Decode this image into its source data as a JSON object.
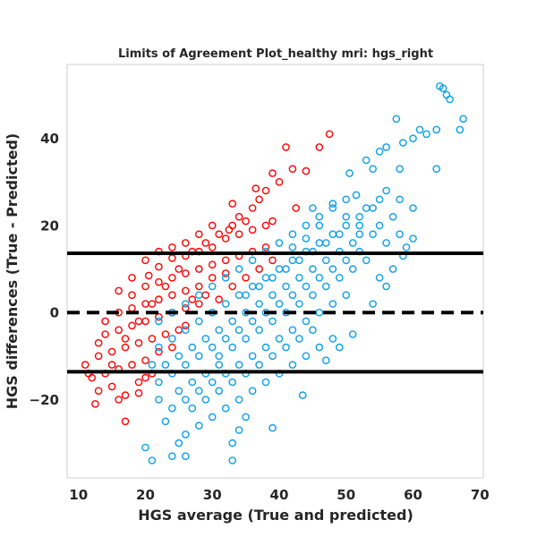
{
  "chart_data": {
    "type": "scatter",
    "title": "Limits of Agreement Plot_healthy mri: hgs_right",
    "xlabel": "HGS average (True and predicted)",
    "ylabel": "HGS differences (True - Predicted)",
    "xlim": [
      8.3,
      70.5
    ],
    "ylim": [
      -38.0,
      57.0
    ],
    "x_ticks": [
      10,
      20,
      30,
      40,
      50,
      60,
      70
    ],
    "y_ticks": [
      -20,
      0,
      20,
      40
    ],
    "x_tick_labels": [
      "10",
      "20",
      "30",
      "40",
      "50",
      "60",
      "70"
    ],
    "y_tick_labels": [
      "−20",
      "0",
      "20",
      "40"
    ],
    "grid": false,
    "legend": "none",
    "colors": {
      "over": "#ff0000",
      "under": "#0b9ee8",
      "lines": "#000000"
    },
    "reference_lines": {
      "mean": 0.0,
      "upper_loa": 13.6,
      "lower_loa": -13.6
    },
    "series": [
      {
        "color": "#ff0000",
        "marker": "open-circle",
        "points": [
          [
            20.5,
            8.5
          ],
          [
            22,
            10.5
          ],
          [
            24,
            12.5
          ],
          [
            26,
            13
          ],
          [
            28,
            14
          ],
          [
            30,
            15
          ],
          [
            32,
            17
          ],
          [
            34,
            18
          ],
          [
            36,
            19
          ],
          [
            38,
            20
          ],
          [
            18,
            4
          ],
          [
            20,
            6
          ],
          [
            22,
            7
          ],
          [
            24,
            8
          ],
          [
            26,
            9
          ],
          [
            28,
            10
          ],
          [
            30,
            11
          ],
          [
            32,
            12
          ],
          [
            34,
            13
          ],
          [
            36,
            14
          ],
          [
            38,
            15
          ],
          [
            16,
            0
          ],
          [
            18,
            1
          ],
          [
            20,
            2
          ],
          [
            22,
            3
          ],
          [
            24,
            4
          ],
          [
            26,
            5
          ],
          [
            28,
            6
          ],
          [
            30,
            8
          ],
          [
            32,
            9
          ],
          [
            14,
            -5
          ],
          [
            16,
            -4
          ],
          [
            18,
            -3
          ],
          [
            20,
            -2
          ],
          [
            22,
            -1
          ],
          [
            24,
            0
          ],
          [
            26,
            1
          ],
          [
            28,
            2
          ],
          [
            13,
            -10
          ],
          [
            15,
            -9
          ],
          [
            17,
            -8
          ],
          [
            19,
            -7
          ],
          [
            21,
            -6
          ],
          [
            23,
            -5
          ],
          [
            25,
            -4
          ],
          [
            12,
            -15
          ],
          [
            14,
            -14
          ],
          [
            16,
            -13
          ],
          [
            18,
            -12
          ],
          [
            20,
            -11
          ],
          [
            13,
            -18
          ],
          [
            15,
            -17
          ],
          [
            17,
            -19
          ],
          [
            19,
            -16
          ],
          [
            21,
            -14
          ],
          [
            12.5,
            -21
          ],
          [
            17,
            -25
          ],
          [
            16,
            -20
          ],
          [
            11,
            -12
          ],
          [
            11.5,
            -14
          ],
          [
            19,
            -18.5
          ],
          [
            24,
            -8
          ],
          [
            26,
            -3
          ],
          [
            22,
            -9
          ],
          [
            20,
            -15
          ],
          [
            29,
            4
          ],
          [
            31,
            3
          ],
          [
            27,
            3
          ],
          [
            33,
            6
          ],
          [
            35,
            8
          ],
          [
            37,
            10
          ],
          [
            39,
            12
          ],
          [
            25,
            10
          ],
          [
            23,
            6
          ],
          [
            21,
            2
          ],
          [
            19,
            -2
          ],
          [
            17,
            -6
          ],
          [
            15,
            -12
          ],
          [
            27,
            14
          ],
          [
            29,
            16
          ],
          [
            31,
            18
          ],
          [
            33,
            20
          ],
          [
            35,
            21
          ],
          [
            36,
            24
          ],
          [
            37,
            26
          ],
          [
            38,
            28
          ],
          [
            39,
            21
          ],
          [
            41,
            38
          ],
          [
            42,
            33
          ],
          [
            44,
            32.5
          ],
          [
            46,
            38
          ],
          [
            47.5,
            41
          ],
          [
            39,
            32
          ],
          [
            40,
            30
          ],
          [
            42.5,
            24
          ],
          [
            36.5,
            28.5
          ],
          [
            33,
            25
          ],
          [
            34,
            22
          ],
          [
            32.5,
            19
          ],
          [
            30,
            20
          ],
          [
            28,
            18
          ],
          [
            26,
            16
          ],
          [
            24,
            15
          ],
          [
            22,
            14
          ],
          [
            20,
            12
          ],
          [
            18,
            8
          ],
          [
            16,
            5
          ],
          [
            14,
            -2
          ],
          [
            13,
            -7
          ]
        ]
      },
      {
        "color": "#0b9ee8",
        "marker": "open-circle",
        "points": [
          [
            64,
            52
          ],
          [
            64.5,
            51.5
          ],
          [
            65,
            50
          ],
          [
            65.5,
            49
          ],
          [
            67.5,
            44.5
          ],
          [
            67,
            42
          ],
          [
            63.5,
            42
          ],
          [
            62,
            41
          ],
          [
            61,
            42
          ],
          [
            60,
            40
          ],
          [
            58.5,
            39
          ],
          [
            57.5,
            44.5
          ],
          [
            58,
            33
          ],
          [
            63.5,
            33
          ],
          [
            56,
            38
          ],
          [
            55,
            37
          ],
          [
            53,
            35
          ],
          [
            54,
            33
          ],
          [
            50.5,
            32
          ],
          [
            51.5,
            27
          ],
          [
            48,
            25
          ],
          [
            46,
            22
          ],
          [
            44,
            20
          ],
          [
            42,
            18
          ],
          [
            40,
            16
          ],
          [
            38,
            14
          ],
          [
            36,
            12
          ],
          [
            34,
            10
          ],
          [
            32,
            8
          ],
          [
            30,
            6
          ],
          [
            28,
            4
          ],
          [
            26,
            2
          ],
          [
            24,
            0
          ],
          [
            22,
            -2
          ],
          [
            56,
            28
          ],
          [
            58,
            26
          ],
          [
            60,
            24
          ],
          [
            54,
            24
          ],
          [
            52,
            22
          ],
          [
            50,
            20
          ],
          [
            48,
            18
          ],
          [
            46,
            16
          ],
          [
            44,
            14
          ],
          [
            42,
            12
          ],
          [
            40,
            10
          ],
          [
            38,
            8
          ],
          [
            36,
            6
          ],
          [
            34,
            4
          ],
          [
            32,
            2
          ],
          [
            30,
            0
          ],
          [
            28,
            -2
          ],
          [
            26,
            -4
          ],
          [
            24,
            -6
          ],
          [
            22,
            -8
          ],
          [
            52,
            14
          ],
          [
            50,
            12
          ],
          [
            48,
            10
          ],
          [
            46,
            8
          ],
          [
            44,
            6
          ],
          [
            42,
            4
          ],
          [
            40,
            2
          ],
          [
            38,
            0
          ],
          [
            36,
            -2
          ],
          [
            34,
            -4
          ],
          [
            32,
            -6
          ],
          [
            30,
            -8
          ],
          [
            28,
            -10
          ],
          [
            26,
            -12
          ],
          [
            24,
            -14
          ],
          [
            22,
            -16
          ],
          [
            50,
            4
          ],
          [
            48,
            2
          ],
          [
            46,
            0
          ],
          [
            44,
            -2
          ],
          [
            42,
            -4
          ],
          [
            40,
            -6
          ],
          [
            38,
            -8
          ],
          [
            36,
            -10
          ],
          [
            34,
            -12
          ],
          [
            32,
            -14
          ],
          [
            30,
            -16
          ],
          [
            28,
            -18
          ],
          [
            26,
            -20
          ],
          [
            24,
            -22
          ],
          [
            48,
            -6
          ],
          [
            46,
            -8
          ],
          [
            44,
            -10
          ],
          [
            42,
            -12
          ],
          [
            40,
            -14
          ],
          [
            38,
            -16
          ],
          [
            36,
            -18
          ],
          [
            34,
            -20
          ],
          [
            32,
            -22
          ],
          [
            30,
            -24
          ],
          [
            28,
            -26
          ],
          [
            26,
            -28
          ],
          [
            21,
            -12
          ],
          [
            22,
            -20
          ],
          [
            23,
            -25
          ],
          [
            25,
            -30
          ],
          [
            26,
            -33
          ],
          [
            24,
            -33
          ],
          [
            21,
            -34
          ],
          [
            20,
            -31
          ],
          [
            33,
            -34
          ],
          [
            33,
            -30
          ],
          [
            34,
            -27
          ],
          [
            35,
            -24
          ],
          [
            39,
            -26.5
          ],
          [
            43.5,
            -19
          ],
          [
            47,
            -11
          ],
          [
            49,
            -8
          ],
          [
            51,
            -5
          ],
          [
            54,
            2
          ],
          [
            56,
            6
          ],
          [
            57,
            10
          ],
          [
            56,
            16
          ],
          [
            54,
            18
          ],
          [
            52,
            20
          ],
          [
            50,
            22
          ],
          [
            48,
            24
          ],
          [
            46,
            20
          ],
          [
            44,
            17
          ],
          [
            42,
            15
          ],
          [
            45,
            24
          ],
          [
            50,
            26
          ],
          [
            52,
            18
          ],
          [
            55,
            20
          ],
          [
            58,
            18
          ],
          [
            57,
            22
          ],
          [
            55,
            26
          ],
          [
            53,
            24
          ],
          [
            51,
            10
          ],
          [
            49,
            14
          ],
          [
            47,
            12
          ],
          [
            45,
            10
          ],
          [
            43,
            8
          ],
          [
            41,
            6
          ],
          [
            39,
            4
          ],
          [
            37,
            2
          ],
          [
            35,
            0
          ],
          [
            33,
            -2
          ],
          [
            31,
            -4
          ],
          [
            29,
            -6
          ],
          [
            27,
            -8
          ],
          [
            25,
            -10
          ],
          [
            23,
            -12
          ],
          [
            31,
            -10
          ],
          [
            33,
            -8
          ],
          [
            35,
            -6
          ],
          [
            37,
            -4
          ],
          [
            39,
            -2
          ],
          [
            41,
            0
          ],
          [
            43,
            2
          ],
          [
            45,
            4
          ],
          [
            47,
            6
          ],
          [
            49,
            8
          ],
          [
            29,
            -14
          ],
          [
            31,
            -18
          ],
          [
            33,
            -16
          ],
          [
            35,
            -14
          ],
          [
            37,
            -12
          ],
          [
            39,
            -10
          ],
          [
            41,
            -8
          ],
          [
            43,
            -6
          ],
          [
            45,
            -4
          ],
          [
            27,
            -22
          ],
          [
            29,
            -20
          ],
          [
            31,
            -12
          ],
          [
            25,
            -18
          ],
          [
            27,
            -16
          ],
          [
            58.5,
            13
          ],
          [
            59,
            15
          ],
          [
            60,
            17
          ],
          [
            35,
            4
          ],
          [
            37,
            6
          ],
          [
            39,
            8
          ],
          [
            41,
            10
          ],
          [
            43,
            12
          ],
          [
            45,
            14
          ],
          [
            47,
            16
          ],
          [
            49,
            18
          ],
          [
            51,
            16
          ],
          [
            53,
            12
          ],
          [
            55,
            8
          ]
        ]
      }
    ]
  }
}
